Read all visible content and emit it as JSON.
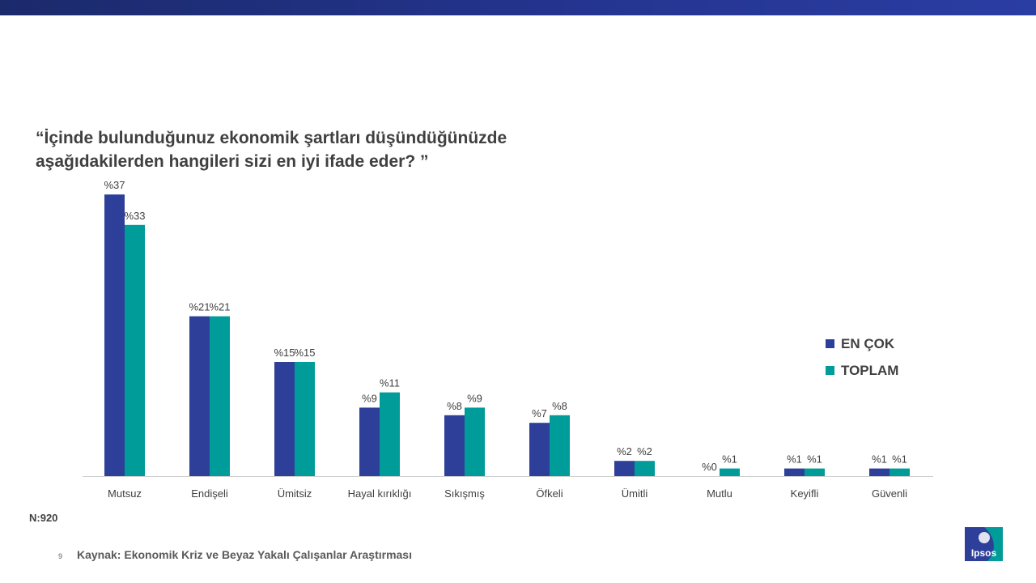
{
  "question": {
    "line1": "“İçinde bulunduğunuz ekonomik şartları düşündüğünüzde",
    "line2": "aşağıdakilerden hangileri sizi en iyi ifade eder? ”"
  },
  "legend": [
    {
      "label": "EN ÇOK",
      "color": "#2e3f99"
    },
    {
      "label": "TOPLAM",
      "color": "#009c9a"
    }
  ],
  "chart_data": {
    "type": "bar",
    "categories": [
      "Mutsuz",
      "Endişeli",
      "Ümitsiz",
      "Hayal kırıklığı",
      "Sıkışmış",
      "Öfkeli",
      "Ümitli",
      "Mutlu",
      "Keyifli",
      "Güvenli"
    ],
    "series": [
      {
        "name": "EN ÇOK",
        "color": "#2e3f99",
        "values": [
          37,
          21,
          15,
          9,
          8,
          7,
          2,
          0,
          1,
          1
        ],
        "labels": [
          "%37",
          "%21",
          "%15",
          "%9",
          "%8",
          "%7",
          "%2",
          "%0",
          "%1",
          "%1"
        ]
      },
      {
        "name": "TOPLAM",
        "color": "#009c9a",
        "values": [
          33,
          21,
          15,
          11,
          9,
          8,
          2,
          1,
          1,
          1
        ],
        "labels": [
          "%33",
          "%21",
          "%15",
          "%11",
          "%9",
          "%8",
          "%2",
          "%1",
          "%1",
          "%1"
        ]
      }
    ],
    "legend_position": "right",
    "grid": false
  },
  "footer": {
    "n": "N:920",
    "page": "9",
    "source": "Kaynak:  Ekonomik Kriz ve Beyaz Yakalı Çalışanlar Araştırması",
    "logo_text": "Ipsos"
  }
}
